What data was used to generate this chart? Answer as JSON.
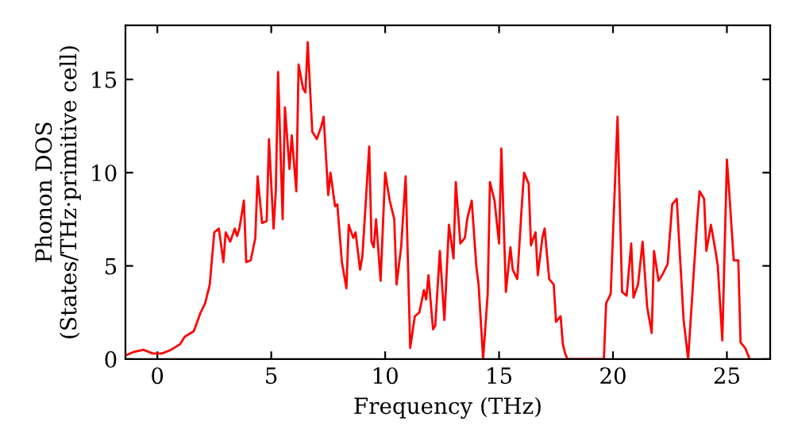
{
  "chart_data": {
    "type": "line",
    "xlabel": "Frequency (THz)",
    "ylabel": "Phonon DOS\n(States/THz·primitive cell)",
    "xlim": [
      -1.4,
      26.9
    ],
    "ylim": [
      0,
      17.9
    ],
    "xticks": [
      0,
      5,
      10,
      15,
      20,
      25
    ],
    "yticks": [
      0,
      5,
      10,
      15
    ],
    "grid": false,
    "legend": false,
    "marker": "none",
    "line_style": "solid",
    "series": [
      {
        "color": "#ff0000",
        "x": [
          -1.4,
          -1.0,
          -0.6,
          -0.2,
          0.2,
          0.6,
          1.0,
          1.2,
          1.6,
          1.9,
          2.1,
          2.3,
          2.5,
          2.7,
          2.9,
          3.0,
          3.2,
          3.4,
          3.5,
          3.6,
          3.8,
          3.9,
          4.1,
          4.3,
          4.4,
          4.6,
          4.8,
          4.9,
          5.1,
          5.2,
          5.3,
          5.5,
          5.6,
          5.8,
          5.9,
          6.1,
          6.2,
          6.4,
          6.5,
          6.6,
          6.8,
          7.0,
          7.2,
          7.3,
          7.5,
          7.6,
          7.8,
          7.9,
          8.1,
          8.3,
          8.4,
          8.6,
          8.7,
          8.9,
          9.0,
          9.3,
          9.4,
          9.5,
          9.6,
          9.8,
          10.0,
          10.2,
          10.4,
          10.5,
          10.7,
          10.9,
          11.1,
          11.3,
          11.5,
          11.7,
          11.8,
          11.9,
          12.1,
          12.2,
          12.4,
          12.6,
          12.8,
          13.0,
          13.1,
          13.3,
          13.5,
          13.6,
          13.8,
          14.0,
          14.1,
          14.3,
          14.5,
          14.6,
          14.8,
          15.0,
          15.1,
          15.3,
          15.5,
          15.6,
          15.8,
          16.0,
          16.1,
          16.3,
          16.4,
          16.6,
          16.7,
          16.9,
          17.0,
          17.2,
          17.4,
          17.5,
          17.7,
          17.8,
          17.9,
          18.0,
          19.6,
          19.7,
          19.9,
          20.2,
          20.4,
          20.6,
          20.8,
          20.9,
          21.1,
          21.3,
          21.5,
          21.7,
          21.8,
          22.0,
          22.2,
          22.4,
          22.6,
          22.8,
          22.9,
          23.1,
          23.3,
          23.5,
          23.7,
          23.8,
          24.0,
          24.1,
          24.3,
          24.5,
          24.6,
          24.8,
          25.0,
          25.1,
          25.3,
          25.5,
          25.6,
          25.8,
          26.0
        ],
        "values": [
          0.2,
          0.4,
          0.5,
          0.3,
          0.3,
          0.5,
          0.8,
          1.2,
          1.5,
          2.5,
          3.0,
          4.0,
          6.8,
          7.0,
          5.2,
          6.8,
          6.3,
          7.0,
          6.6,
          7.0,
          8.5,
          5.2,
          5.3,
          6.5,
          9.8,
          7.3,
          7.4,
          11.8,
          7.0,
          9.0,
          15.4,
          7.5,
          13.5,
          10.2,
          12.0,
          9.0,
          15.8,
          14.5,
          14.3,
          17.0,
          12.2,
          11.8,
          12.5,
          13.0,
          8.8,
          10.0,
          8.2,
          8.3,
          5.2,
          3.8,
          7.2,
          6.5,
          6.8,
          4.8,
          5.5,
          11.4,
          6.3,
          6.0,
          7.5,
          4.2,
          10.0,
          8.5,
          7.5,
          4.0,
          6.0,
          9.8,
          0.6,
          2.3,
          2.5,
          3.7,
          3.2,
          4.5,
          1.6,
          1.8,
          5.8,
          2.1,
          7.2,
          5.4,
          9.5,
          6.2,
          6.5,
          7.5,
          8.5,
          5.0,
          4.0,
          0.0,
          3.5,
          9.5,
          8.5,
          6.2,
          11.3,
          3.6,
          6.0,
          4.8,
          4.3,
          8.3,
          10.0,
          9.4,
          6.1,
          6.8,
          4.5,
          6.5,
          7.0,
          4.3,
          4.0,
          2.0,
          2.3,
          0.8,
          0.3,
          0.0,
          0.0,
          3.0,
          3.5,
          13.0,
          3.6,
          3.4,
          6.2,
          3.3,
          4.0,
          6.3,
          2.8,
          1.4,
          5.8,
          4.2,
          4.6,
          5.1,
          8.3,
          8.6,
          6.4,
          2.1,
          0.0,
          3.8,
          7.5,
          9.0,
          8.6,
          5.8,
          7.2,
          5.8,
          5.0,
          1.0,
          10.7,
          9.0,
          5.3,
          5.3,
          0.9,
          0.6,
          0.0
        ]
      }
    ]
  }
}
